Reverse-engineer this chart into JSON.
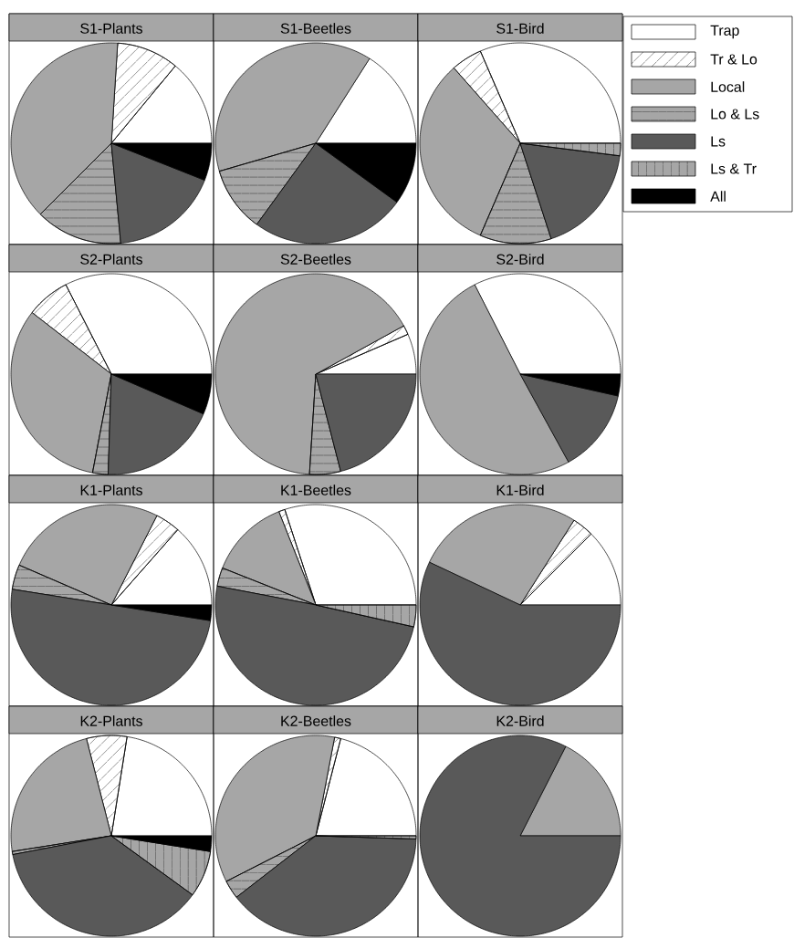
{
  "chart_data": [
    {
      "type": "pie",
      "title": "S1-Plants",
      "categories": [
        null,
        null,
        null,
        null,
        null,
        null,
        null
      ],
      "values": [
        14,
        10,
        38.5,
        14,
        17.5,
        0,
        6
      ],
      "colors": [
        "#ffffff",
        "#ffffff",
        "#a6a6a6",
        "#a6a6a6",
        "#595959",
        "#a6a6a6",
        "#000000"
      ]
    },
    {
      "type": "pie",
      "title": "S1-Beetles",
      "categories": [
        null,
        null,
        null,
        null,
        null,
        null,
        null
      ],
      "values": [
        16,
        0,
        38.5,
        10.5,
        25,
        0,
        10
      ],
      "colors": [
        "#ffffff",
        "#ffffff",
        "#a6a6a6",
        "#a6a6a6",
        "#595959",
        "#a6a6a6",
        "#000000"
      ]
    },
    {
      "type": "pie",
      "title": "S1-Bird",
      "categories": [
        "Trap",
        "Tr & Lo",
        "Local",
        "Lo & Ls",
        "Ls",
        "Ls & Tr",
        "All"
      ],
      "values": [
        31.5,
        5,
        32,
        11.5,
        18,
        2,
        0
      ],
      "colors": [
        "#ffffff",
        "#ffffff",
        "#a6a6a6",
        "#a6a6a6",
        "#595959",
        "#a6a6a6",
        "#000000"
      ],
      "legend": "right"
    },
    {
      "type": "pie",
      "title": "S2-Plants",
      "categories": [
        null,
        null,
        null,
        null,
        null,
        null,
        null
      ],
      "values": [
        32.5,
        7,
        32.5,
        2.5,
        19,
        0,
        6.5
      ],
      "colors": [
        "#ffffff",
        "#ffffff",
        "#a6a6a6",
        "#a6a6a6",
        "#595959",
        "#a6a6a6",
        "#000000"
      ]
    },
    {
      "type": "pie",
      "title": "S2-Beetles",
      "categories": [
        null,
        null,
        null,
        null,
        null,
        null,
        null
      ],
      "values": [
        6.5,
        1.5,
        66,
        5,
        21,
        0,
        0
      ],
      "colors": [
        "#ffffff",
        "#ffffff",
        "#a6a6a6",
        "#a6a6a6",
        "#595959",
        "#a6a6a6",
        "#000000"
      ]
    },
    {
      "type": "pie",
      "title": "S2-Bird",
      "categories": [
        null,
        null,
        null,
        null,
        null,
        null,
        null
      ],
      "values": [
        32.5,
        0,
        50.5,
        0,
        13.5,
        0,
        3.5
      ],
      "colors": [
        "#ffffff",
        "#ffffff",
        "#a6a6a6",
        "#a6a6a6",
        "#595959",
        "#a6a6a6",
        "#000000"
      ]
    },
    {
      "type": "pie",
      "title": "K1-Plants",
      "categories": [
        null,
        null,
        null,
        null,
        null,
        null,
        null
      ],
      "values": [
        13.5,
        4,
        26,
        4,
        50,
        0,
        2.5
      ],
      "colors": [
        "#ffffff",
        "#ffffff",
        "#a6a6a6",
        "#a6a6a6",
        "#595959",
        "#a6a6a6",
        "#000000"
      ]
    },
    {
      "type": "pie",
      "title": "K1-Beetles",
      "categories": [
        null,
        null,
        null,
        null,
        null,
        null,
        null
      ],
      "values": [
        30,
        1,
        13,
        3,
        49.5,
        3.5,
        0
      ],
      "colors": [
        "#ffffff",
        "#ffffff",
        "#a6a6a6",
        "#a6a6a6",
        "#595959",
        "#a6a6a6",
        "#000000"
      ]
    },
    {
      "type": "pie",
      "title": "K1-Bird",
      "categories": [
        null,
        null,
        null,
        null,
        null,
        null,
        null
      ],
      "values": [
        12.5,
        3.5,
        27,
        0,
        57,
        0,
        0
      ],
      "colors": [
        "#ffffff",
        "#ffffff",
        "#a6a6a6",
        "#a6a6a6",
        "#595959",
        "#a6a6a6",
        "#000000"
      ]
    },
    {
      "type": "pie",
      "title": "K2-Plants",
      "categories": [
        null,
        null,
        null,
        null,
        null,
        null,
        null
      ],
      "values": [
        22.5,
        6.5,
        23.5,
        0.5,
        37,
        7.5,
        2.5
      ],
      "colors": [
        "#ffffff",
        "#ffffff",
        "#a6a6a6",
        "#a6a6a6",
        "#595959",
        "#a6a6a6",
        "#000000"
      ]
    },
    {
      "type": "pie",
      "title": "K2-Beetles",
      "categories": [
        null,
        null,
        null,
        null,
        null,
        null,
        null
      ],
      "values": [
        21,
        1,
        35.5,
        3,
        39,
        0.5,
        0
      ],
      "colors": [
        "#ffffff",
        "#ffffff",
        "#a6a6a6",
        "#a6a6a6",
        "#595959",
        "#a6a6a6",
        "#000000"
      ]
    },
    {
      "type": "pie",
      "title": "K2-Bird",
      "categories": [
        null,
        null,
        null,
        null,
        null,
        null,
        null
      ],
      "values": [
        0,
        0,
        17.5,
        0,
        82.5,
        0,
        0
      ],
      "colors": [
        "#ffffff",
        "#ffffff",
        "#a6a6a6",
        "#a6a6a6",
        "#595959",
        "#a6a6a6",
        "#000000"
      ]
    }
  ]
}
